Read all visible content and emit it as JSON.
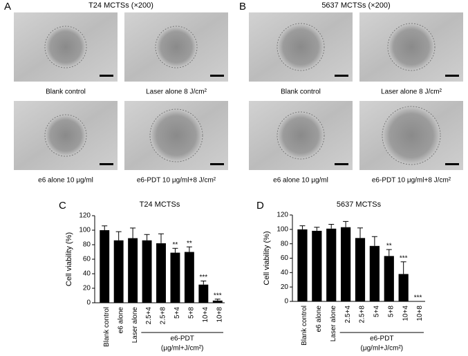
{
  "panels": [
    {
      "letter": "A",
      "title": "T24 MCTSs (×200)",
      "captions": [
        "Blank control",
        "Laser alone 8 J/cm²",
        "e6 alone 10 μg/ml",
        "e6-PDT 10 μg/ml+8 J/cm²"
      ]
    },
    {
      "letter": "B",
      "title": "5637 MCTSs (×200)",
      "captions": [
        "Blank control",
        "Laser alone 8 J/cm²",
        "e6 alone 10 μg/ml",
        "e6-PDT 10 μg/ml+8 J/cm²"
      ]
    }
  ],
  "chart_data": [
    {
      "type": "bar",
      "letter": "C",
      "title": "T24 MCTSs",
      "ylabel": "Cell viability (%)",
      "categories": [
        "Blank control",
        "e6 alone",
        "Laser alone",
        "2.5+4",
        "2.5+8",
        "5+4",
        "5+8",
        "10+4",
        "10+8"
      ],
      "values": [
        100,
        86,
        89,
        86,
        82,
        69,
        70,
        25,
        3
      ],
      "errors": [
        6,
        12,
        14,
        8,
        13,
        6,
        7,
        5,
        2
      ],
      "annotations": [
        null,
        null,
        null,
        null,
        null,
        "**",
        "**",
        "***",
        "***"
      ],
      "color": "#000000",
      "ylim": [
        0,
        120
      ],
      "yticks": [
        0,
        20,
        40,
        60,
        80,
        100,
        120
      ],
      "group": {
        "label": "e6-PDT",
        "units": "(μg/ml+J/cm²)"
      }
    },
    {
      "type": "bar",
      "letter": "D",
      "title": "5637 MCTSs",
      "ylabel": "Cell viability (%)",
      "categories": [
        "Blank control",
        "e6 alone",
        "Laser alone",
        "2.5+4",
        "2.5+8",
        "5+4",
        "5+8",
        "10+4",
        "10+8"
      ],
      "values": [
        100,
        98,
        101,
        103,
        88,
        77,
        63,
        38,
        0
      ],
      "errors": [
        5,
        5,
        6,
        8,
        14,
        13,
        9,
        17,
        0
      ],
      "annotations": [
        null,
        null,
        null,
        null,
        null,
        null,
        "**",
        "***",
        "***"
      ],
      "color": "#000000",
      "ylim": [
        0,
        120
      ],
      "yticks": [
        0,
        20,
        40,
        60,
        80,
        100,
        120
      ],
      "group": {
        "label": "e6-PDT",
        "units": "(μg/ml+J/cm²)"
      }
    }
  ]
}
